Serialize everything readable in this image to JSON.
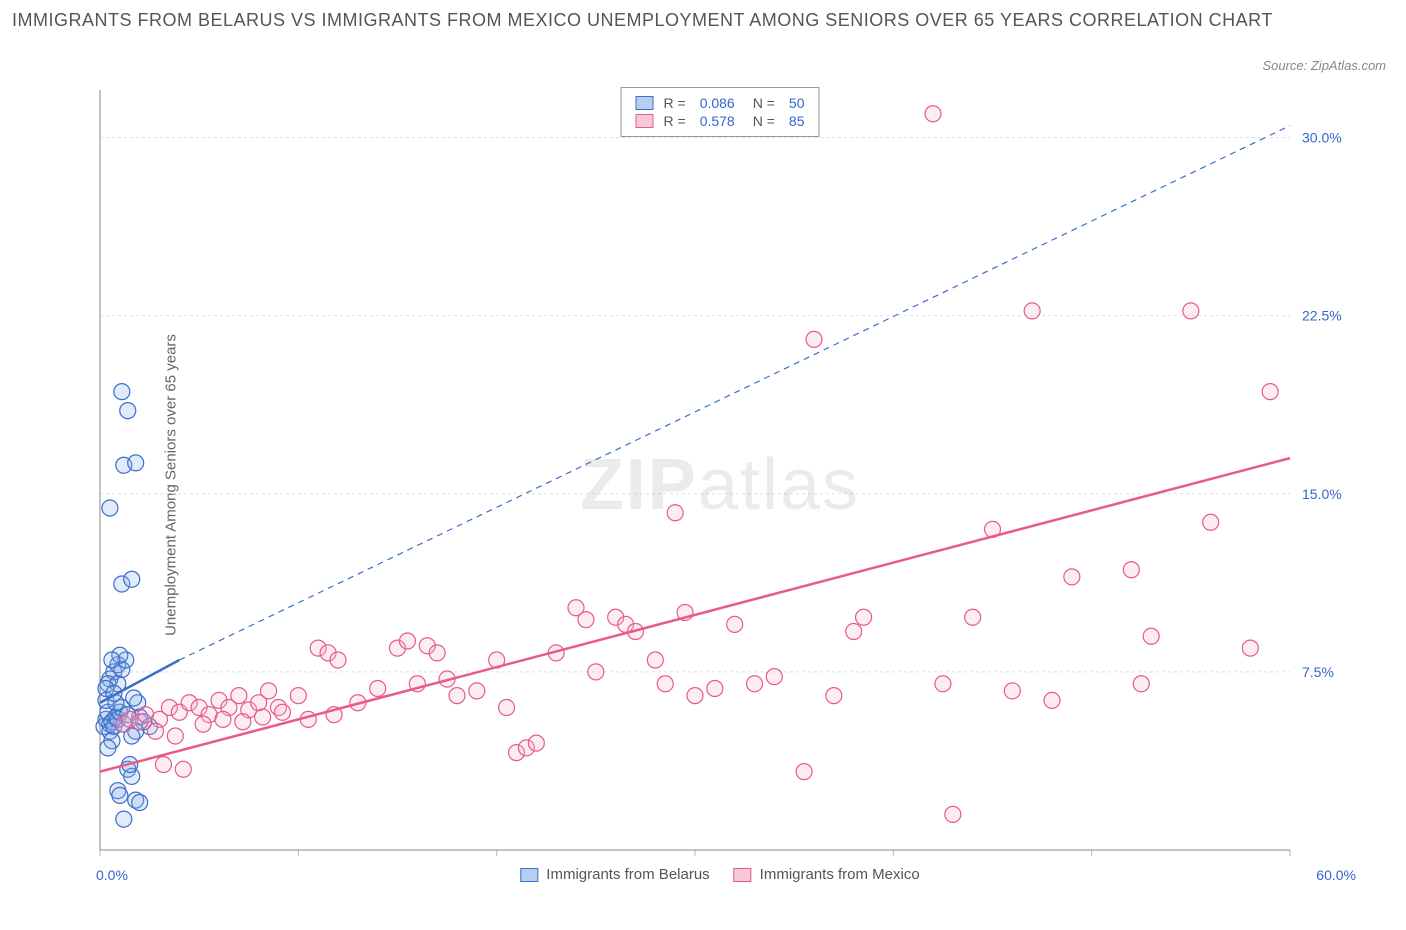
{
  "title": "IMMIGRANTS FROM BELARUS VS IMMIGRANTS FROM MEXICO UNEMPLOYMENT AMONG SENIORS OVER 65 YEARS CORRELATION CHART",
  "source": "Source: ZipAtlas.com",
  "watermark": {
    "part1": "ZIP",
    "part2": "atlas"
  },
  "ylabel": "Unemployment Among Seniors over 65 years",
  "chart": {
    "type": "scatter",
    "background_color": "#ffffff",
    "grid_color": "#e0e0e0",
    "axis_color": "#888888",
    "tick_color": "#bbbbbb",
    "xlim": [
      0,
      60
    ],
    "ylim": [
      0,
      32
    ],
    "xticks": [
      0,
      10,
      20,
      30,
      40,
      50,
      60
    ],
    "yticks": [
      7.5,
      15.0,
      22.5,
      30.0
    ],
    "xtick_labels": {
      "first": "0.0%",
      "last": "60.0%"
    },
    "ytick_labels": [
      "7.5%",
      "15.0%",
      "22.5%",
      "30.0%"
    ],
    "axis_label_color": "#3366cc",
    "axis_label_fontsize": 14,
    "marker_radius": 8,
    "marker_stroke_width": 1.2,
    "marker_fill_opacity": 0.25,
    "series": [
      {
        "name": "Immigrants from Belarus",
        "color_stroke": "#3b6fc9",
        "color_fill": "#8db0e8",
        "R": 0.086,
        "N": 50,
        "trend": {
          "x1": 0,
          "y1": 6.2,
          "x2": 4,
          "y2": 8.0,
          "width": 2.5,
          "dash": "none"
        },
        "extrap": {
          "x1": 4,
          "y1": 8.0,
          "x2": 60,
          "y2": 30.5,
          "width": 1.2,
          "dash": "6,5"
        },
        "points": [
          [
            0.2,
            5.2
          ],
          [
            0.3,
            5.5
          ],
          [
            0.5,
            5.3
          ],
          [
            0.4,
            5.8
          ],
          [
            0.6,
            5.4
          ],
          [
            0.8,
            5.6
          ],
          [
            0.5,
            5.0
          ],
          [
            0.7,
            5.2
          ],
          [
            0.3,
            6.3
          ],
          [
            0.9,
            5.5
          ],
          [
            1.0,
            5.8
          ],
          [
            1.2,
            5.3
          ],
          [
            1.1,
            6.0
          ],
          [
            0.8,
            6.2
          ],
          [
            0.6,
            4.6
          ],
          [
            0.4,
            4.3
          ],
          [
            1.4,
            3.4
          ],
          [
            1.6,
            3.1
          ],
          [
            1.5,
            3.6
          ],
          [
            0.9,
            2.5
          ],
          [
            1.0,
            2.3
          ],
          [
            1.8,
            2.1
          ],
          [
            2.0,
            2.0
          ],
          [
            1.2,
            1.3
          ],
          [
            0.5,
            7.2
          ],
          [
            0.7,
            7.5
          ],
          [
            0.9,
            7.8
          ],
          [
            1.1,
            7.6
          ],
          [
            0.4,
            7.0
          ],
          [
            1.3,
            8.0
          ],
          [
            1.0,
            8.2
          ],
          [
            0.6,
            8.0
          ],
          [
            1.1,
            11.2
          ],
          [
            1.6,
            11.4
          ],
          [
            1.2,
            16.2
          ],
          [
            1.8,
            16.3
          ],
          [
            1.4,
            18.5
          ],
          [
            1.1,
            19.3
          ],
          [
            0.5,
            14.4
          ],
          [
            2.0,
            5.6
          ],
          [
            2.2,
            5.4
          ],
          [
            2.5,
            5.2
          ],
          [
            1.8,
            5.0
          ],
          [
            1.6,
            4.8
          ],
          [
            1.4,
            5.7
          ],
          [
            1.9,
            6.2
          ],
          [
            1.7,
            6.4
          ],
          [
            0.9,
            7.0
          ],
          [
            0.3,
            6.8
          ],
          [
            0.7,
            6.6
          ]
        ]
      },
      {
        "name": "Immigrants from Mexico",
        "color_stroke": "#e85a8a",
        "color_fill": "#f5b8ce",
        "R": 0.578,
        "N": 85,
        "trend": {
          "x1": 0,
          "y1": 3.3,
          "x2": 60,
          "y2": 16.5,
          "width": 2.5,
          "dash": "none"
        },
        "extrap": null,
        "points": [
          [
            1.2,
            5.3
          ],
          [
            1.5,
            5.5
          ],
          [
            2.0,
            5.4
          ],
          [
            2.3,
            5.7
          ],
          [
            3.0,
            5.5
          ],
          [
            3.5,
            6.0
          ],
          [
            4.0,
            5.8
          ],
          [
            4.5,
            6.2
          ],
          [
            5.0,
            6.0
          ],
          [
            5.5,
            5.7
          ],
          [
            6.0,
            6.3
          ],
          [
            6.5,
            6.0
          ],
          [
            7.0,
            6.5
          ],
          [
            7.5,
            5.9
          ],
          [
            8.0,
            6.2
          ],
          [
            8.5,
            6.7
          ],
          [
            9.0,
            6.0
          ],
          [
            10.0,
            6.5
          ],
          [
            11.0,
            8.5
          ],
          [
            11.5,
            8.3
          ],
          [
            12.0,
            8.0
          ],
          [
            13.0,
            6.2
          ],
          [
            14.0,
            6.8
          ],
          [
            15.0,
            8.5
          ],
          [
            15.5,
            8.8
          ],
          [
            16.0,
            7.0
          ],
          [
            16.5,
            8.6
          ],
          [
            17.0,
            8.3
          ],
          [
            17.5,
            7.2
          ],
          [
            18.0,
            6.5
          ],
          [
            19.0,
            6.7
          ],
          [
            20.0,
            8.0
          ],
          [
            20.5,
            6.0
          ],
          [
            21.0,
            4.1
          ],
          [
            21.5,
            4.3
          ],
          [
            22.0,
            4.5
          ],
          [
            23.0,
            8.3
          ],
          [
            24.0,
            10.2
          ],
          [
            24.5,
            9.7
          ],
          [
            25.0,
            7.5
          ],
          [
            26.0,
            9.8
          ],
          [
            26.5,
            9.5
          ],
          [
            27.0,
            9.2
          ],
          [
            28.0,
            8.0
          ],
          [
            28.5,
            7.0
          ],
          [
            29.0,
            14.2
          ],
          [
            29.5,
            10.0
          ],
          [
            30.0,
            6.5
          ],
          [
            31.0,
            6.8
          ],
          [
            32.0,
            9.5
          ],
          [
            33.0,
            7.0
          ],
          [
            34.0,
            7.3
          ],
          [
            35.0,
            31.0
          ],
          [
            35.5,
            3.3
          ],
          [
            36.0,
            21.5
          ],
          [
            37.0,
            6.5
          ],
          [
            38.0,
            9.2
          ],
          [
            38.5,
            9.8
          ],
          [
            42.0,
            31.0
          ],
          [
            42.5,
            7.0
          ],
          [
            43.0,
            1.5
          ],
          [
            44.0,
            9.8
          ],
          [
            45.0,
            13.5
          ],
          [
            46.0,
            6.7
          ],
          [
            47.0,
            22.7
          ],
          [
            48.0,
            6.3
          ],
          [
            49.0,
            11.5
          ],
          [
            52.0,
            11.8
          ],
          [
            52.5,
            7.0
          ],
          [
            53.0,
            9.0
          ],
          [
            55.0,
            22.7
          ],
          [
            56.0,
            13.8
          ],
          [
            58.0,
            8.5
          ],
          [
            59.0,
            19.3
          ],
          [
            3.2,
            3.6
          ],
          [
            4.2,
            3.4
          ],
          [
            2.8,
            5.0
          ],
          [
            3.8,
            4.8
          ],
          [
            5.2,
            5.3
          ],
          [
            6.2,
            5.5
          ],
          [
            7.2,
            5.4
          ],
          [
            8.2,
            5.6
          ],
          [
            9.2,
            5.8
          ],
          [
            10.5,
            5.5
          ],
          [
            11.8,
            5.7
          ]
        ]
      }
    ]
  },
  "legend_top": [
    {
      "swatch_fill": "#b8cef0",
      "swatch_stroke": "#3b6fc9",
      "R": "0.086",
      "N": "50"
    },
    {
      "swatch_fill": "#f5c9d8",
      "swatch_stroke": "#e85a8a",
      "R": "0.578",
      "N": "85"
    }
  ],
  "legend_bottom": [
    {
      "swatch_fill": "#b8cef0",
      "swatch_stroke": "#3b6fc9",
      "label": "Immigrants from Belarus"
    },
    {
      "swatch_fill": "#f5c9d8",
      "swatch_stroke": "#e85a8a",
      "label": "Immigrants from Mexico"
    }
  ]
}
